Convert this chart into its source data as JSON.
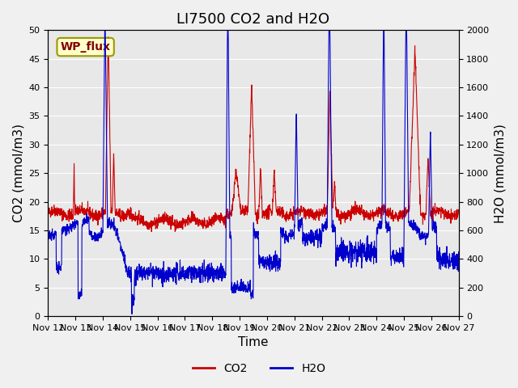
{
  "title": "LI7500 CO2 and H2O",
  "xlabel": "Time",
  "ylabel_left": "CO2 (mmol/m3)",
  "ylabel_right": "H2O (mmol/m3)",
  "ylim_left": [
    0,
    50
  ],
  "ylim_right": [
    0,
    2000
  ],
  "yticks_left": [
    0,
    5,
    10,
    15,
    20,
    25,
    30,
    35,
    40,
    45,
    50
  ],
  "yticks_right": [
    0,
    200,
    400,
    600,
    800,
    1000,
    1200,
    1400,
    1600,
    1800,
    2000
  ],
  "x_tick_labels": [
    "Nov 12",
    "Nov 13",
    "Nov 14",
    "Nov 15",
    "Nov 16",
    "Nov 17",
    "Nov 18",
    "Nov 19",
    "Nov 20",
    "Nov 21",
    "Nov 22",
    "Nov 23",
    "Nov 24",
    "Nov 25",
    "Nov 26",
    "Nov 27"
  ],
  "co2_color": "#cc0000",
  "h2o_color": "#0000cc",
  "background_color": "#e8e8e8",
  "plot_bg_color": "#e8e8e8",
  "annotation_text": "WP_flux",
  "annotation_facecolor": "#ffffcc",
  "annotation_edgecolor": "#999900",
  "annotation_textcolor": "#800000",
  "legend_co2_label": "CO2",
  "legend_h2o_label": "H2O",
  "title_fontsize": 13,
  "axis_label_fontsize": 11
}
